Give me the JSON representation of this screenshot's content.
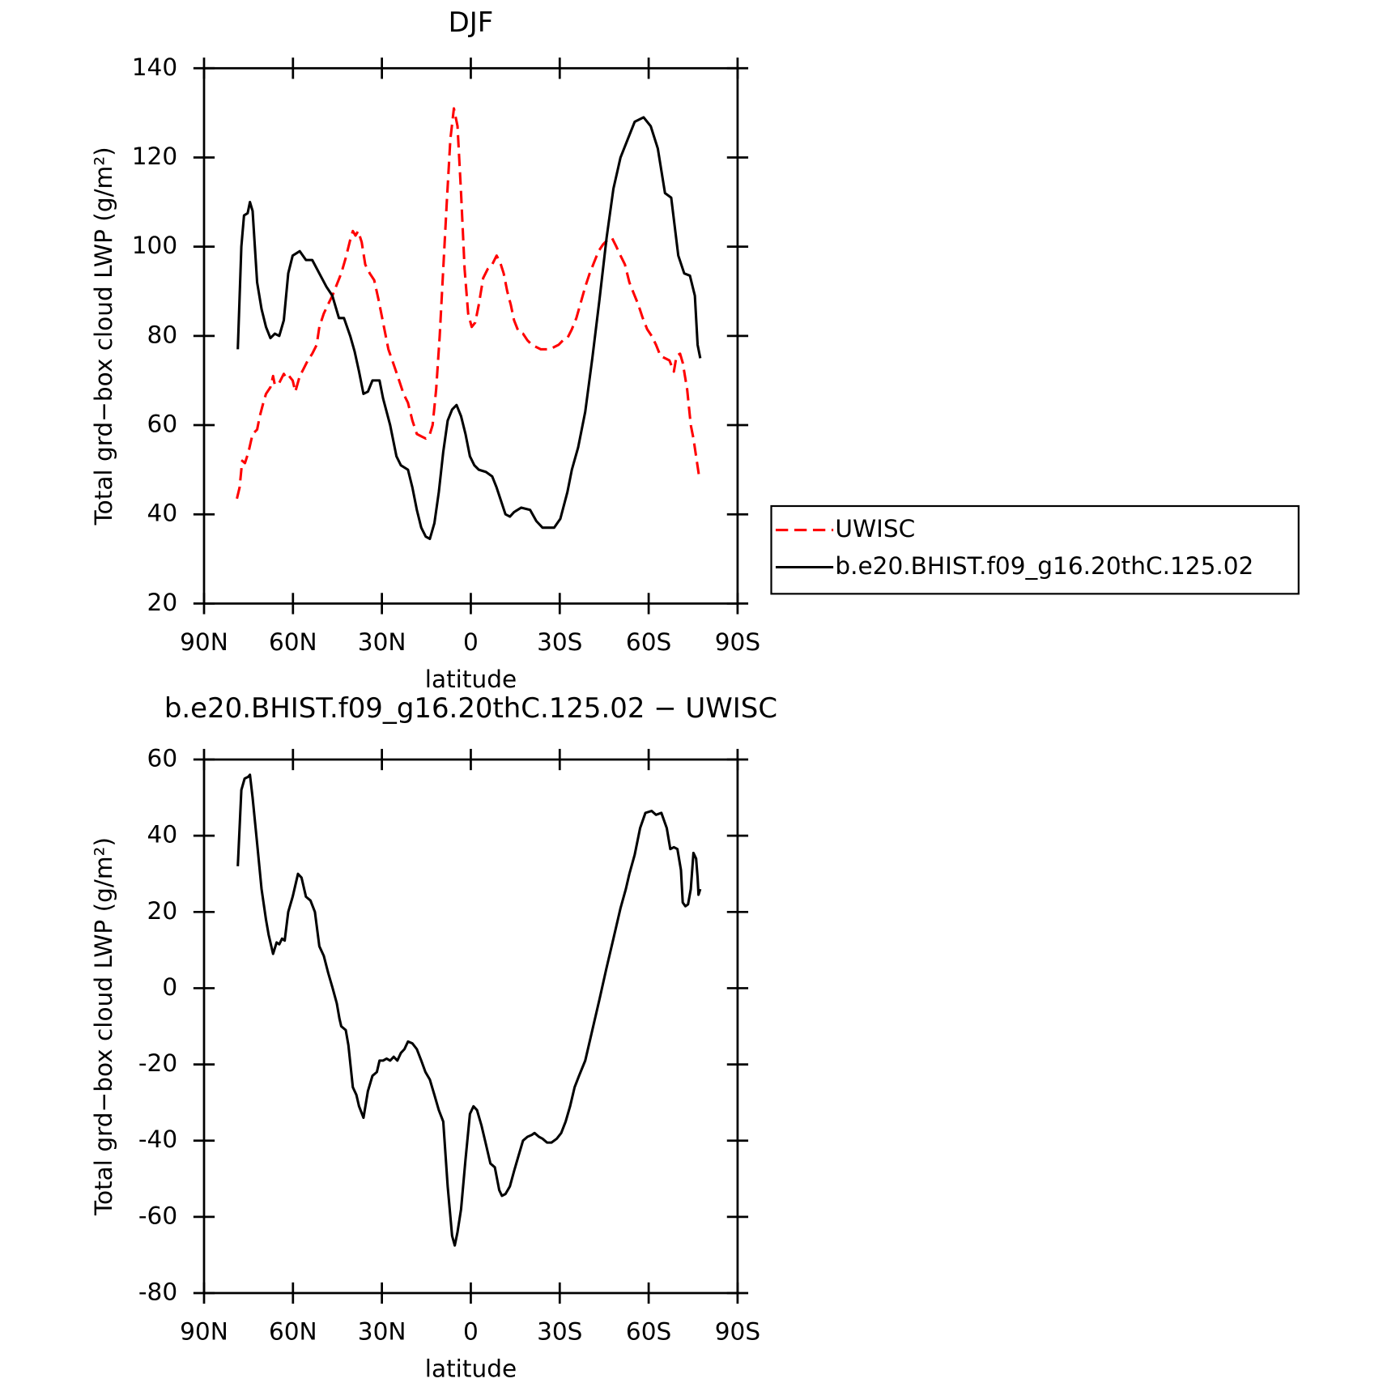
{
  "chart_data": [
    {
      "type": "line",
      "title": "DJF",
      "xlabel": "latitude",
      "ylabel": "Total grd−box cloud LWP (g/m²)",
      "xlim": [
        90,
        -90
      ],
      "xticks": [
        {
          "value": 90,
          "label": "90N"
        },
        {
          "value": 60,
          "label": "60N"
        },
        {
          "value": 30,
          "label": "30N"
        },
        0,
        {
          "value": -30,
          "label": "30S"
        },
        {
          "value": -60,
          "label": "60S"
        },
        {
          "value": -90,
          "label": "90S"
        }
      ],
      "ylim": [
        20,
        140
      ],
      "yticks": [
        20,
        40,
        60,
        80,
        100,
        120,
        140
      ],
      "legend": "right",
      "series": [
        {
          "name": "UWISC",
          "color": "#ff0000",
          "linestyle": "dashed",
          "x": [
            78.9,
            78,
            77.1,
            76.2,
            75,
            73.6,
            72.1,
            71.2,
            70,
            69.1,
            67.6,
            66.7,
            66.1,
            64.6,
            63.1,
            62.2,
            61.3,
            60.1,
            59.2,
            57.7,
            56.5,
            55,
            53.5,
            52,
            51.1,
            49.6,
            48.2,
            46.7,
            45.2,
            43.7,
            42.2,
            40.7,
            39.8,
            38.9,
            38,
            36.8,
            35.6,
            34.1,
            32.6,
            31.1,
            29.3,
            27.8,
            25.7,
            24.2,
            22.7,
            21.2,
            19.7,
            18.2,
            16.7,
            15.2,
            13.8,
            12.9,
            11.7,
            10.5,
            9.3,
            8.1,
            6.9,
            5.7,
            4.5,
            3.3,
            2.1,
            0.9,
            -0.3,
            -1.5,
            -2.7,
            -4.2,
            -5.7,
            -7.2,
            -8.7,
            -9.9,
            -11.1,
            -12.3,
            -13.5,
            -14.6,
            -16.1,
            -17.6,
            -19.1,
            -20.6,
            -22.1,
            -23.6,
            -26.6,
            -28.1,
            -29.6,
            -31.1,
            -32.6,
            -34.1,
            -35.6,
            -37.1,
            -38.6,
            -40.1,
            -41.6,
            -43.1,
            -44.6,
            -46.1,
            -47.6,
            -49.1,
            -50.5,
            -52,
            -53.5,
            -55,
            -56.5,
            -58,
            -59.5,
            -61,
            -62.5,
            -64,
            -65.5,
            -67,
            -68.5,
            -69.4,
            -70.6,
            -71.5,
            -73,
            -74.2,
            -75.1,
            -76,
            -76.9
          ],
          "values": [
            43.5,
            46,
            52,
            51.5,
            54,
            58,
            59,
            62,
            65,
            67,
            68.5,
            71,
            69,
            69.5,
            71.5,
            70.5,
            71,
            70,
            67.5,
            71,
            72.5,
            74.5,
            76,
            78,
            82,
            85,
            87,
            89,
            91.5,
            94,
            97.5,
            101.5,
            103.5,
            102.5,
            103.5,
            101,
            96,
            94,
            92.5,
            88,
            82,
            77,
            73,
            70,
            67,
            65,
            61,
            58,
            57.5,
            57,
            58,
            60,
            68,
            80,
            95,
            110,
            124,
            131,
            127,
            112,
            95,
            85,
            82,
            83,
            87,
            93,
            95,
            96,
            98,
            96.5,
            94,
            90,
            87,
            83.5,
            81,
            80.5,
            79,
            78,
            77.5,
            77,
            77,
            77.5,
            78,
            79,
            79.5,
            81.5,
            84,
            87.5,
            91,
            94,
            96.5,
            99,
            100.5,
            101.5,
            102,
            100,
            98,
            96,
            92,
            89.5,
            87,
            84,
            81.5,
            80,
            78,
            75.5,
            75,
            74.5,
            72,
            75.5,
            76,
            74,
            68,
            60,
            57,
            53,
            49
          ]
        },
        {
          "name": "b.e20.BHIST.f09_g16.20thC.125.02",
          "color": "#000000",
          "linestyle": "solid",
          "x": [
            78.6,
            77.4,
            76.5,
            75.3,
            74.5,
            73.6,
            72.1,
            70.6,
            69.1,
            67.6,
            66.1,
            64.6,
            63.1,
            61.6,
            60.1,
            57.7,
            55.6,
            53.5,
            51.1,
            48.7,
            46.7,
            44.5,
            42.8,
            40.7,
            39.2,
            37.7,
            36.2,
            34.7,
            33.2,
            30.8,
            29.6,
            27.2,
            25.1,
            23.6,
            21.2,
            19.7,
            18.2,
            16.7,
            15.2,
            13.8,
            12.3,
            10.8,
            9.3,
            7.8,
            6.3,
            4.8,
            3.3,
            1.8,
            0.3,
            -1.2,
            -2.7,
            -5.1,
            -7.2,
            -8.7,
            -10.2,
            -11.7,
            -13.2,
            -14.6,
            -17,
            -20,
            -22.1,
            -24.2,
            -28.1,
            -30.2,
            -32.6,
            -34.1,
            -36.2,
            -38.6,
            -41,
            -43.4,
            -45.8,
            -48.1,
            -50.5,
            -52.9,
            -55.3,
            -58.3,
            -60.7,
            -63.1,
            -65.5,
            -67.6,
            -70,
            -72,
            -73.9,
            -75.6,
            -76.5,
            -77.4
          ],
          "values": [
            77,
            100,
            107,
            107.5,
            110,
            108,
            92,
            86,
            82,
            79.5,
            80.5,
            80,
            83.5,
            94,
            98,
            99,
            97,
            97,
            94,
            91,
            89,
            84,
            84,
            80,
            76.5,
            72,
            67,
            67.5,
            70,
            70,
            66,
            60,
            53,
            51,
            50,
            46,
            41,
            37,
            35,
            34.5,
            38,
            45,
            54,
            61,
            63.5,
            64.5,
            62,
            58,
            53,
            51,
            50,
            49.5,
            48.5,
            46,
            43,
            40,
            39.5,
            40.5,
            41.5,
            41,
            38.5,
            37,
            37,
            39,
            45,
            50,
            55,
            63,
            75,
            88,
            102,
            113,
            120,
            124,
            128,
            129,
            127,
            122,
            112,
            111,
            98,
            94,
            93.5,
            89,
            78,
            75
          ]
        }
      ]
    },
    {
      "type": "line",
      "title": "b.e20.BHIST.f09_g16.20thC.125.02 − UWISC",
      "xlabel": "latitude",
      "ylabel": "Total grd−box cloud LWP (g/m²)",
      "xlim": [
        90,
        -90
      ],
      "xticks": [
        {
          "value": 90,
          "label": "90N"
        },
        {
          "value": 60,
          "label": "60N"
        },
        {
          "value": 30,
          "label": "30N"
        },
        0,
        {
          "value": -30,
          "label": "30S"
        },
        {
          "value": -60,
          "label": "60S"
        },
        {
          "value": -90,
          "label": "90S"
        }
      ],
      "ylim": [
        -80,
        60
      ],
      "yticks": [
        -80,
        -60,
        -40,
        -20,
        0,
        20,
        40,
        60
      ],
      "series": [
        {
          "color": "#000000",
          "linestyle": "solid",
          "x": [
            78.6,
            77.4,
            76.3,
            75.05,
            74.5,
            73.6,
            72.1,
            70.6,
            69.1,
            68.2,
            66.7,
            65.5,
            64.6,
            63.7,
            62.8,
            61.6,
            60.1,
            58.3,
            57.1,
            55.6,
            54.1,
            52.6,
            51.1,
            49.6,
            48.1,
            46.6,
            45.2,
            44.3,
            43.7,
            42.2,
            41.3,
            39.8,
            38.6,
            37.7,
            36.2,
            34.7,
            33.2,
            31.7,
            30.8,
            29.6,
            28.4,
            27.2,
            26,
            24.8,
            23.6,
            22.4,
            21.2,
            19.7,
            18.2,
            16.7,
            15.3,
            13.8,
            12.3,
            10.8,
            9.3,
            7.8,
            6.3,
            5.4,
            4.5,
            3.3,
            1.8,
            0.3,
            -0.9,
            -2.1,
            -3.6,
            -5.1,
            -6.6,
            -8.1,
            -9.6,
            -10.5,
            -11.7,
            -13.2,
            -14.6,
            -16.1,
            -17.6,
            -19.1,
            -20.6,
            -21.5,
            -23,
            -24.2,
            -25.7,
            -27.2,
            -29,
            -30.5,
            -32,
            -33.5,
            -35,
            -36.5,
            -38.6,
            -41,
            -43.4,
            -45.7,
            -48.1,
            -50.5,
            -52.3,
            -53.5,
            -55.3,
            -57.1,
            -58.9,
            -61,
            -62.5,
            -64.3,
            -66.1,
            -67.3,
            -68.5,
            -69.7,
            -70.9,
            -71.5,
            -72.4,
            -73.3,
            -74.2,
            -75.1,
            -76,
            -76.5,
            -76.8,
            -77.4
          ],
          "values": [
            32,
            52,
            55,
            55.5,
            56,
            50,
            38,
            26,
            18,
            14,
            9,
            12,
            11.5,
            13,
            12.5,
            20,
            24,
            30,
            29,
            24,
            23,
            20,
            11,
            8.5,
            4,
            0,
            -4,
            -8,
            -10,
            -11,
            -15,
            -26,
            -28,
            -31,
            -34,
            -27,
            -23,
            -22,
            -19,
            -19,
            -18.5,
            -19,
            -18,
            -19,
            -17,
            -16,
            -14,
            -14.5,
            -16,
            -19,
            -22,
            -24,
            -28,
            -32,
            -35,
            -52,
            -65,
            -67.5,
            -64,
            -58,
            -45,
            -33,
            -31,
            -32,
            -36,
            -41,
            -46,
            -47,
            -53,
            -54.5,
            -54,
            -52,
            -48,
            -44,
            -40,
            -39,
            -38.5,
            -38,
            -39,
            -39.5,
            -40.5,
            -40.5,
            -39.5,
            -38,
            -35,
            -31,
            -26,
            -23,
            -19,
            -11,
            -3,
            5,
            13,
            21,
            26,
            30,
            35,
            42,
            46,
            46.5,
            45.5,
            46,
            42,
            36.5,
            37,
            36.5,
            31,
            22.5,
            21.5,
            22,
            26,
            35.5,
            34,
            29,
            24.5,
            26
          ]
        }
      ]
    }
  ]
}
